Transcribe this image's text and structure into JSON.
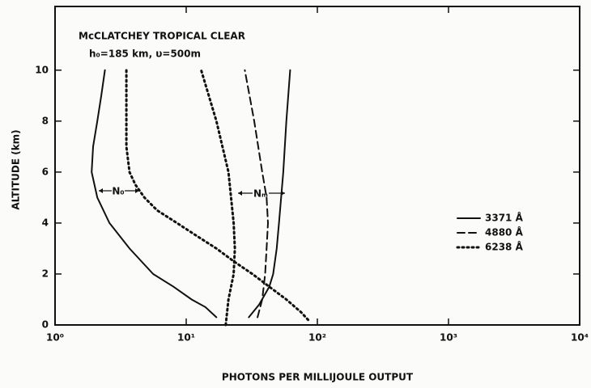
{
  "chart_data": {
    "type": "line",
    "title": "McCLATCHEY TROPICAL CLEAR",
    "subtitle": "h₀=185 km,  υ=500m",
    "xlabel": "PHOTONS PER MILLIJOULE OUTPUT",
    "ylabel": "ALTITUDE (km)",
    "annotations": [
      "N₀",
      "Nₘ"
    ],
    "xscale": "log",
    "xlim": [
      1,
      10000
    ],
    "xticks": [
      {
        "value": 1,
        "label": "10⁰"
      },
      {
        "value": 10,
        "label": "10¹"
      },
      {
        "value": 100,
        "label": "10²"
      },
      {
        "value": 1000,
        "label": "10³"
      },
      {
        "value": 10000,
        "label": "10⁴"
      }
    ],
    "ylim": [
      0,
      12.5
    ],
    "yticks": [
      0,
      2,
      4,
      6,
      8,
      10
    ],
    "legend": "right",
    "series": [
      {
        "name": "3371 Å",
        "color": "#111111",
        "style": "solid",
        "x": [
          17,
          14,
          11,
          8,
          5.6,
          3.7,
          2.6,
          2.1,
          1.9,
          1.95,
          2.1,
          2.25,
          2.4,
          null,
          30,
          36,
          43,
          46,
          49,
          51,
          55,
          58,
          62
        ],
        "values": [
          0.3,
          0.7,
          1,
          1.5,
          2,
          3,
          4,
          5,
          6,
          7,
          8,
          9,
          10,
          null,
          0.3,
          0.8,
          1.5,
          2,
          3,
          4,
          6,
          8,
          10
        ]
      },
      {
        "name": "4880 Å",
        "color": "#111111",
        "style": "dashed",
        "x": [
          35,
          38,
          40,
          41,
          42,
          41,
          38,
          33,
          28
        ],
        "values": [
          0.3,
          1,
          2,
          3,
          4,
          5,
          6,
          8,
          10
        ]
      },
      {
        "name": "6238 Å",
        "color": "#111111",
        "style": "dotted",
        "x": [
          85,
          75,
          58,
          43,
          32,
          23,
          17,
          12,
          8.5,
          6,
          4.8,
          4.1,
          3.7,
          3.5,
          3.5,
          3.5,
          null,
          20,
          21,
          23,
          23.5,
          23,
          21,
          17,
          13
        ],
        "values": [
          0.2,
          0.5,
          1,
          1.5,
          2,
          2.5,
          3,
          3.5,
          4,
          4.5,
          5,
          5.5,
          6,
          7,
          8,
          10,
          null,
          0,
          1,
          2,
          3,
          4,
          6,
          8,
          10
        ]
      }
    ]
  }
}
